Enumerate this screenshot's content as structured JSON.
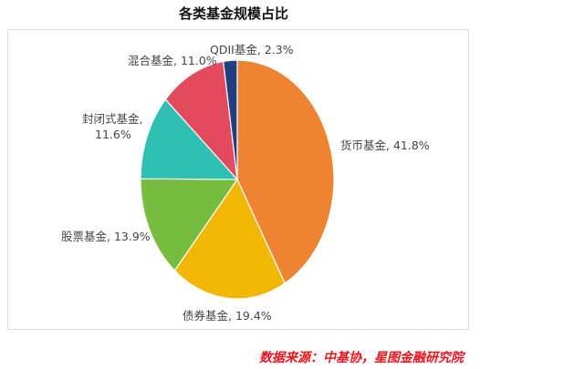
{
  "chart_data": {
    "type": "pie",
    "title": "各类基金规模占比",
    "start": "top",
    "direction": "clockwise",
    "slices": [
      {
        "name": "货币基金",
        "value": 41.8,
        "label": "货币基金, 41.8%",
        "color": "#EE8432"
      },
      {
        "name": "债券基金",
        "value": 19.4,
        "label": "债券基金, 19.4%",
        "color": "#F2B705"
      },
      {
        "name": "股票基金",
        "value": 13.9,
        "label": "股票基金, 13.9%",
        "color": "#76BC3F"
      },
      {
        "name": "封闭式基金",
        "value": 11.6,
        "label": "封闭式基金,",
        "label2": "11.6%",
        "color": "#2FBFB3"
      },
      {
        "name": "混合基金",
        "value": 11.0,
        "label": "混合基金, 11.0%",
        "color": "#E44A5E"
      },
      {
        "name": "QDII基金",
        "value": 2.3,
        "label": "QDII基金, 2.3%",
        "color": "#213F7F"
      }
    ]
  },
  "source": "数据来源：中基协，星图金融研究院"
}
